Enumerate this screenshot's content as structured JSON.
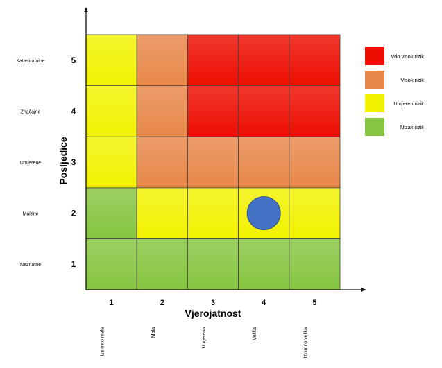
{
  "chart_data": {
    "type": "heatmap",
    "xlabel": "Vjerojatnost",
    "ylabel": "Posljedice",
    "x_ticks": [
      "1",
      "2",
      "3",
      "4",
      "5"
    ],
    "x_descriptions": [
      "Iznimno mala",
      "Mala",
      "Umjerena",
      "Velika",
      "Iznimno velika"
    ],
    "y_ticks": [
      "1",
      "2",
      "3",
      "4",
      "5"
    ],
    "y_descriptions": [
      "Neznatne",
      "Malene",
      "Umjerene",
      "Značajne",
      "Katastrofalne"
    ],
    "levels": [
      {
        "key": "low",
        "label": "Nizak rizik",
        "color": "#86c540"
      },
      {
        "key": "medium",
        "label": "Umjeren rizik",
        "color": "#f2f200"
      },
      {
        "key": "high",
        "label": "Visok rizik",
        "color": "#e8874a"
      },
      {
        "key": "very_high",
        "label": "Vrlo visok rizik",
        "color": "#ee0d00"
      }
    ],
    "legend_order": [
      "very_high",
      "high",
      "medium",
      "low"
    ],
    "legend_position": "right",
    "grid": [
      [
        "low",
        "low",
        "low",
        "low",
        "low"
      ],
      [
        "low",
        "medium",
        "medium",
        "medium",
        "medium"
      ],
      [
        "medium",
        "high",
        "high",
        "high",
        "high"
      ],
      [
        "medium",
        "high",
        "very_high",
        "very_high",
        "very_high"
      ],
      [
        "medium",
        "high",
        "very_high",
        "very_high",
        "very_high"
      ]
    ],
    "grid_note": "rows are Posljedice 1..5, columns are Vjerojatnost 1..5",
    "marker": {
      "x": 4,
      "y": 2,
      "color": "#4472c4"
    }
  }
}
